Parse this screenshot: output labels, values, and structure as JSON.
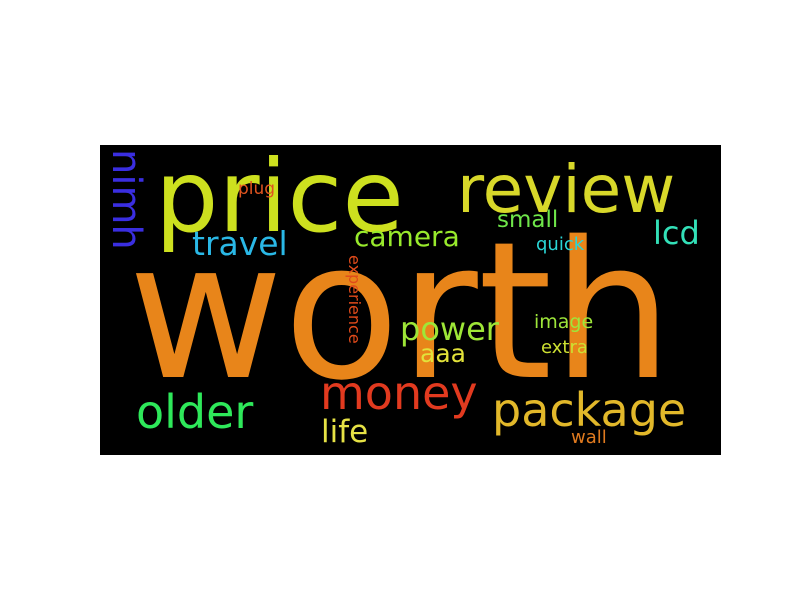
{
  "words": {
    "worth": {
      "text": "worth",
      "color": "#e8851a"
    },
    "price": {
      "text": "price",
      "color": "#cde01f"
    },
    "review": {
      "text": "review",
      "color": "#d8d82a"
    },
    "nimh": {
      "text": "nimh",
      "color": "#3a2ee0"
    },
    "plug": {
      "text": "plug",
      "color": "#e0541f"
    },
    "travel": {
      "text": "travel",
      "color": "#2ab8e6"
    },
    "camera": {
      "text": "camera",
      "color": "#98ea2c"
    },
    "small": {
      "text": "small",
      "color": "#6fe64a"
    },
    "quick": {
      "text": "quick",
      "color": "#2ad6d6"
    },
    "lcd": {
      "text": "lcd",
      "color": "#33e0b8"
    },
    "experience": {
      "text": "experience",
      "color": "#e04a1a"
    },
    "power": {
      "text": "power",
      "color": "#9ee637"
    },
    "aaa": {
      "text": "aaa",
      "color": "#e2e23a"
    },
    "image": {
      "text": "image",
      "color": "#9ee63a"
    },
    "extra": {
      "text": "extra",
      "color": "#cde032"
    },
    "money": {
      "text": "money",
      "color": "#e23a1f"
    },
    "older": {
      "text": "older",
      "color": "#2ee85a"
    },
    "package": {
      "text": "package",
      "color": "#e2b82a"
    },
    "life": {
      "text": "life",
      "color": "#e6e245"
    },
    "wall": {
      "text": "wall",
      "color": "#e07a1f"
    }
  }
}
